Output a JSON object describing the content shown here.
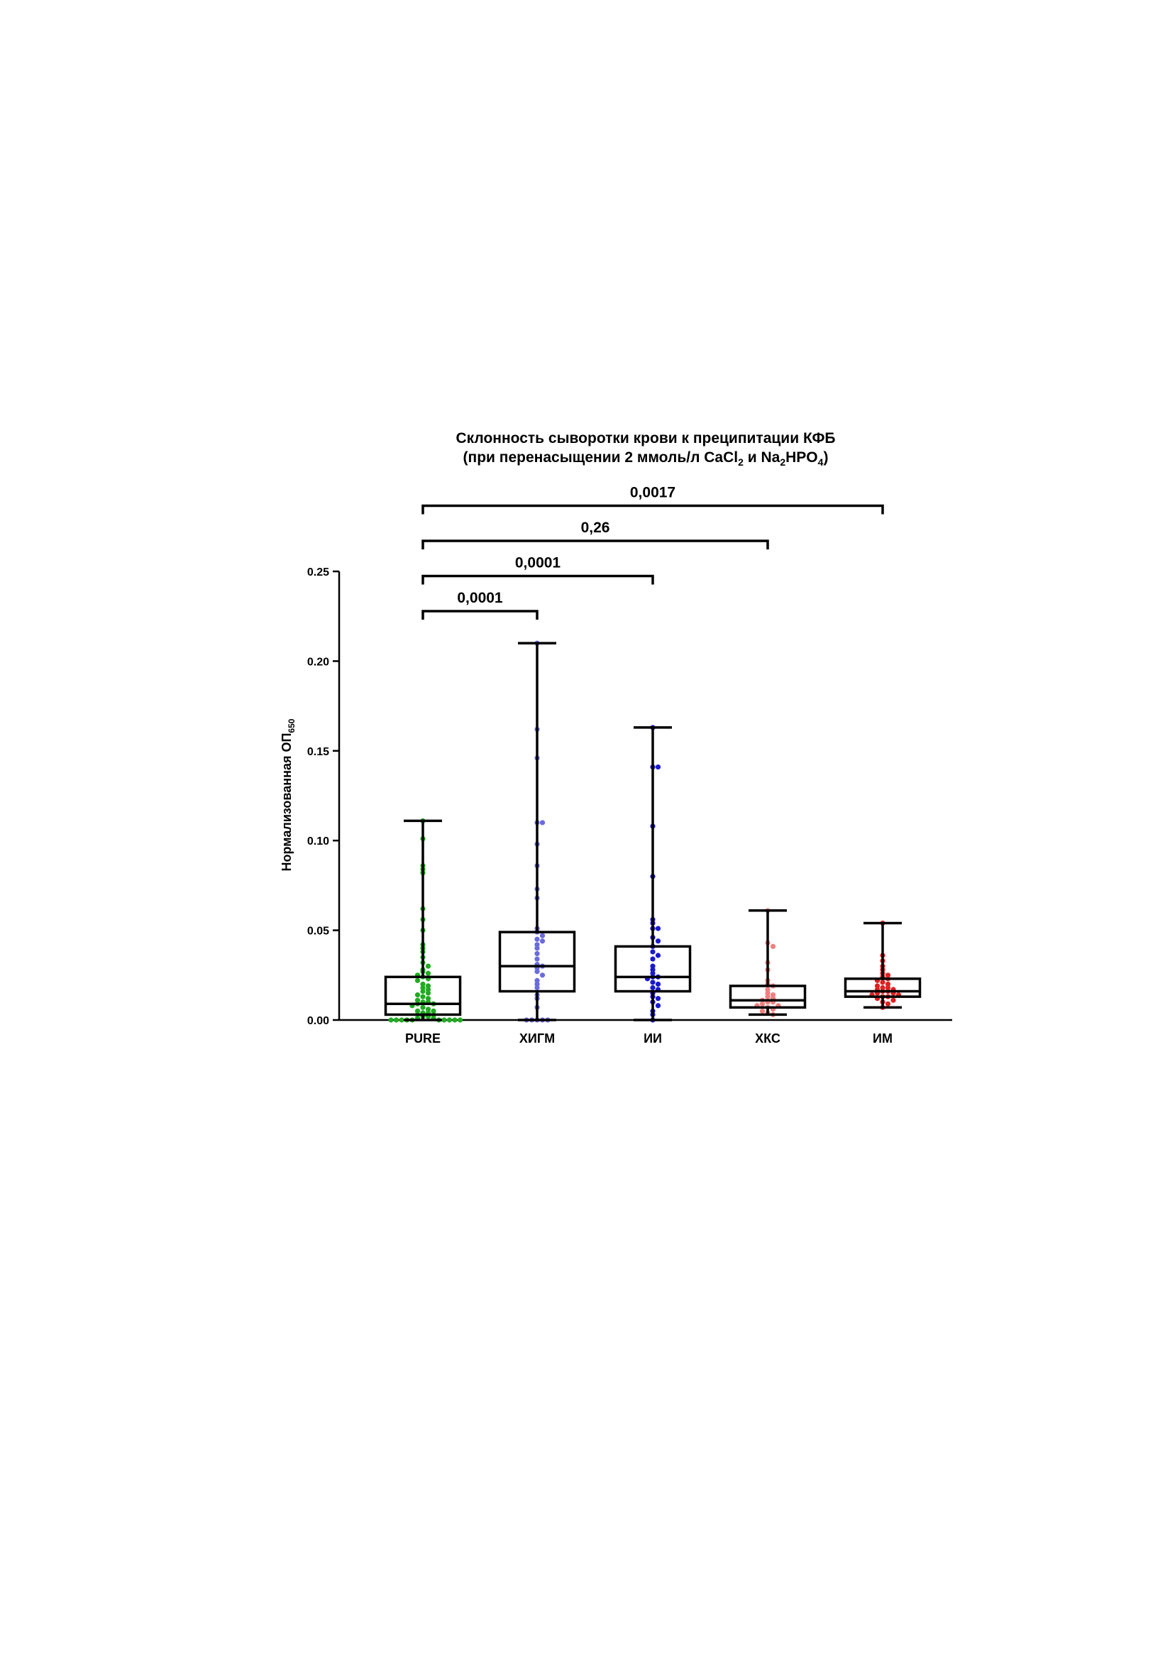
{
  "chart_data": {
    "type": "box",
    "title": [
      "Склонность сыворотки крови к преципитации КФБ",
      [
        "(при перенасыщении 2 ммоль/л CaCl",
        "2",
        " и Na",
        "2",
        "HPO",
        "4",
        ")"
      ]
    ],
    "ylabel": [
      "Нормализованная ОП",
      "650"
    ],
    "ylim": [
      0,
      0.25
    ],
    "yticks": [
      {
        "value": 0,
        "label": "0.00"
      },
      {
        "value": 0.05,
        "label": "0.05"
      },
      {
        "value": 0.1,
        "label": "0.10"
      },
      {
        "value": 0.15,
        "label": "0.15"
      },
      {
        "value": 0.2,
        "label": "0.20"
      },
      {
        "value": 0.25,
        "label": "0.25"
      }
    ],
    "series": [
      {
        "name": "PURE",
        "color": "#22aa22",
        "min": 0,
        "q1": 0.003,
        "median": 0.009,
        "q3": 0.024,
        "max": 0.111,
        "points": [
          0.111,
          0.101,
          0.086,
          0.084,
          0.082,
          0.062,
          0.056,
          0.05,
          0.042,
          0.04,
          0.038,
          0.035,
          0.032,
          0.03,
          0.028,
          0.027,
          0.026,
          0.025,
          0.024,
          0.023,
          0.022,
          0.02,
          0.019,
          0.018,
          0.017,
          0.016,
          0.015,
          0.014,
          0.013,
          0.012,
          0.011,
          0.01,
          0.01,
          0.009,
          0.009,
          0.008,
          0.007,
          0.006,
          0.005,
          0.005,
          0.004,
          0.004,
          0.003,
          0.003,
          0.002,
          0.002,
          0.001,
          0.001,
          0,
          0,
          0,
          0,
          0,
          0,
          0,
          0,
          0,
          0
        ]
      },
      {
        "name": "ХИГМ",
        "color": "#6a6ae0",
        "min": 0,
        "q1": 0.016,
        "median": 0.03,
        "q3": 0.049,
        "max": 0.21,
        "points": [
          0.21,
          0.162,
          0.146,
          0.11,
          0.11,
          0.098,
          0.086,
          0.073,
          0.068,
          0.051,
          0.049,
          0.047,
          0.045,
          0.044,
          0.042,
          0.04,
          0.037,
          0.034,
          0.031,
          0.03,
          0.029,
          0.027,
          0.025,
          0.022,
          0.02,
          0.018,
          0.014,
          0.012,
          0.007,
          0,
          0,
          0,
          0,
          0
        ]
      },
      {
        "name": "ИИ",
        "color": "#1a1acc",
        "min": 0,
        "q1": 0.016,
        "median": 0.024,
        "q3": 0.041,
        "max": 0.163,
        "points": [
          0.163,
          0.141,
          0.141,
          0.108,
          0.08,
          0.056,
          0.054,
          0.051,
          0.051,
          0.046,
          0.044,
          0.041,
          0.038,
          0.036,
          0.034,
          0.03,
          0.028,
          0.026,
          0.024,
          0.024,
          0.023,
          0.021,
          0.02,
          0.018,
          0.017,
          0.015,
          0.013,
          0.012,
          0.01,
          0.008,
          0.005,
          0.003,
          0
        ]
      },
      {
        "name": "ХКС",
        "color": "#f08080",
        "min": 0.003,
        "q1": 0.007,
        "median": 0.011,
        "q3": 0.019,
        "max": 0.061,
        "points": [
          0.061,
          0.043,
          0.041,
          0.032,
          0.028,
          0.022,
          0.02,
          0.019,
          0.017,
          0.015,
          0.014,
          0.013,
          0.012,
          0.011,
          0.01,
          0.01,
          0.009,
          0.008,
          0.008,
          0.007,
          0.006,
          0.005,
          0.004,
          0.003
        ]
      },
      {
        "name": "ИМ",
        "color": "#dd2222",
        "min": 0.007,
        "q1": 0.013,
        "median": 0.016,
        "q3": 0.023,
        "max": 0.054,
        "points": [
          0.054,
          0.036,
          0.033,
          0.03,
          0.028,
          0.026,
          0.025,
          0.024,
          0.023,
          0.022,
          0.021,
          0.02,
          0.019,
          0.018,
          0.018,
          0.017,
          0.017,
          0.016,
          0.016,
          0.015,
          0.015,
          0.014,
          0.014,
          0.013,
          0.013,
          0.012,
          0.011,
          0.01,
          0.009,
          0.007
        ]
      }
    ],
    "brackets": [
      {
        "label": "0,0001",
        "between": [
          "PURE",
          "ХИГМ"
        ]
      },
      {
        "label": "0,0001",
        "between": [
          "PURE",
          "ИИ"
        ]
      },
      {
        "label": "0,26",
        "between": [
          "PURE",
          "ХКС"
        ]
      },
      {
        "label": "0,0017",
        "between": [
          "PURE",
          "ИМ"
        ]
      }
    ]
  }
}
